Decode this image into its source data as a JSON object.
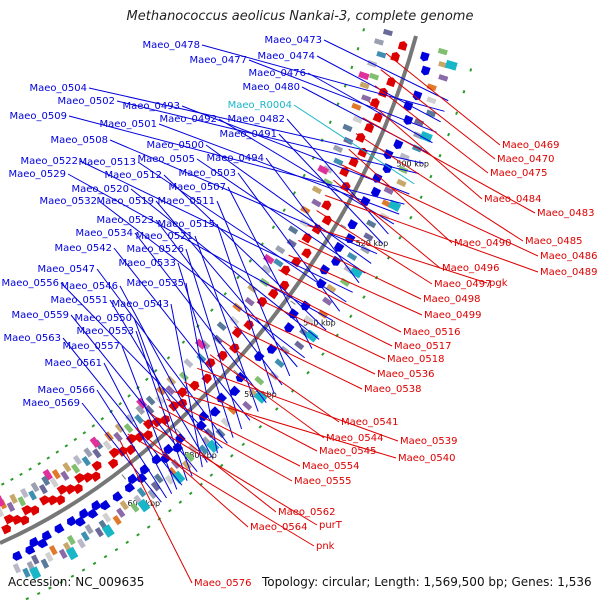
{
  "title": "Methanococcus aeolicus Nankai-3, complete genome",
  "footer": {
    "accession": "Accession: NC_009635",
    "summary": "Topology: circular; Length: 1,569,500 bp; Genes: 1,536"
  },
  "colors": {
    "left_strand": "#0000dd",
    "right_strand": "#dd0000",
    "rna": "#19b6c8",
    "backbone": "#777777"
  },
  "ticks": [
    {
      "text": "500 kbp"
    },
    {
      "text": "520 kbp"
    },
    {
      "text": "540 kbp"
    },
    {
      "text": "560 kbp"
    },
    {
      "text": "580 kbp"
    },
    {
      "text": "600 kbp"
    }
  ],
  "left_labels": [
    {
      "id": "Maeo_0473",
      "color": "blue"
    },
    {
      "id": "Maeo_0478",
      "color": "blue"
    },
    {
      "id": "Maeo_0474",
      "color": "blue"
    },
    {
      "id": "Maeo_0477",
      "color": "blue"
    },
    {
      "id": "Maeo_0476",
      "color": "blue"
    },
    {
      "id": "Maeo_0480",
      "color": "blue"
    },
    {
      "id": "Maeo_0504",
      "color": "blue"
    },
    {
      "id": "Maeo_0502",
      "color": "blue"
    },
    {
      "id": "Maeo_R0004",
      "color": "cyan"
    },
    {
      "id": "Maeo_0493",
      "color": "blue"
    },
    {
      "id": "Maeo_0509",
      "color": "blue"
    },
    {
      "id": "Maeo_0501",
      "color": "blue"
    },
    {
      "id": "Maeo_0492",
      "color": "blue"
    },
    {
      "id": "Maeo_0482",
      "color": "blue"
    },
    {
      "id": "Maeo_0491",
      "color": "blue"
    },
    {
      "id": "Maeo_0508",
      "color": "blue"
    },
    {
      "id": "Maeo_0500",
      "color": "blue"
    },
    {
      "id": "Maeo_0505",
      "color": "blue"
    },
    {
      "id": "Maeo_0494",
      "color": "blue"
    },
    {
      "id": "Maeo_0522",
      "color": "blue"
    },
    {
      "id": "Maeo_0513",
      "color": "blue"
    },
    {
      "id": "Maeo_0503",
      "color": "blue"
    },
    {
      "id": "Maeo_0529",
      "color": "blue"
    },
    {
      "id": "Maeo_0512",
      "color": "blue"
    },
    {
      "id": "Maeo_0520",
      "color": "blue"
    },
    {
      "id": "Maeo_0507",
      "color": "blue"
    },
    {
      "id": "Maeo_0532",
      "color": "blue"
    },
    {
      "id": "Maeo_0519",
      "color": "blue"
    },
    {
      "id": "Maeo_0511",
      "color": "blue"
    },
    {
      "id": "Maeo_0523",
      "color": "blue"
    },
    {
      "id": "Maeo_0515",
      "color": "blue"
    },
    {
      "id": "Maeo_0534",
      "color": "blue"
    },
    {
      "id": "Maeo_0521",
      "color": "blue"
    },
    {
      "id": "Maeo_0542",
      "color": "blue"
    },
    {
      "id": "Maeo_0526",
      "color": "blue"
    },
    {
      "id": "Maeo_0533",
      "color": "blue"
    },
    {
      "id": "Maeo_0547",
      "color": "blue"
    },
    {
      "id": "Maeo_0556",
      "color": "blue"
    },
    {
      "id": "Maeo_0535",
      "color": "blue"
    },
    {
      "id": "Maeo_0546",
      "color": "blue"
    },
    {
      "id": "Maeo_0551",
      "color": "blue"
    },
    {
      "id": "Maeo_0543",
      "color": "blue"
    },
    {
      "id": "Maeo_0559",
      "color": "blue"
    },
    {
      "id": "Maeo_0550",
      "color": "blue"
    },
    {
      "id": "Maeo_0553",
      "color": "blue"
    },
    {
      "id": "Maeo_0563",
      "color": "blue"
    },
    {
      "id": "Maeo_0557",
      "color": "blue"
    },
    {
      "id": "Maeo_0561",
      "color": "blue"
    },
    {
      "id": "Maeo_0566",
      "color": "blue"
    },
    {
      "id": "Maeo_0569",
      "color": "blue"
    }
  ],
  "right_labels": [
    "Maeo_0469",
    "Maeo_0470",
    "Maeo_0475",
    "Maeo_0484",
    "Maeo_0483",
    "Maeo_0485",
    "Maeo_0490",
    "Maeo_0486",
    "Maeo_0496",
    "Maeo_0489",
    "Maeo_0497",
    "pgk",
    "Maeo_0498",
    "Maeo_0499",
    "Maeo_0516",
    "Maeo_0517",
    "Maeo_0518",
    "Maeo_0536",
    "Maeo_0538",
    "Maeo_0541",
    "Maeo_0544",
    "Maeo_0539",
    "Maeo_0545",
    "Maeo_0540",
    "Maeo_0554",
    "Maeo_0555",
    "Maeo_0562",
    "purT",
    "Maeo_0564",
    "pnk",
    "Maeo_0576"
  ]
}
